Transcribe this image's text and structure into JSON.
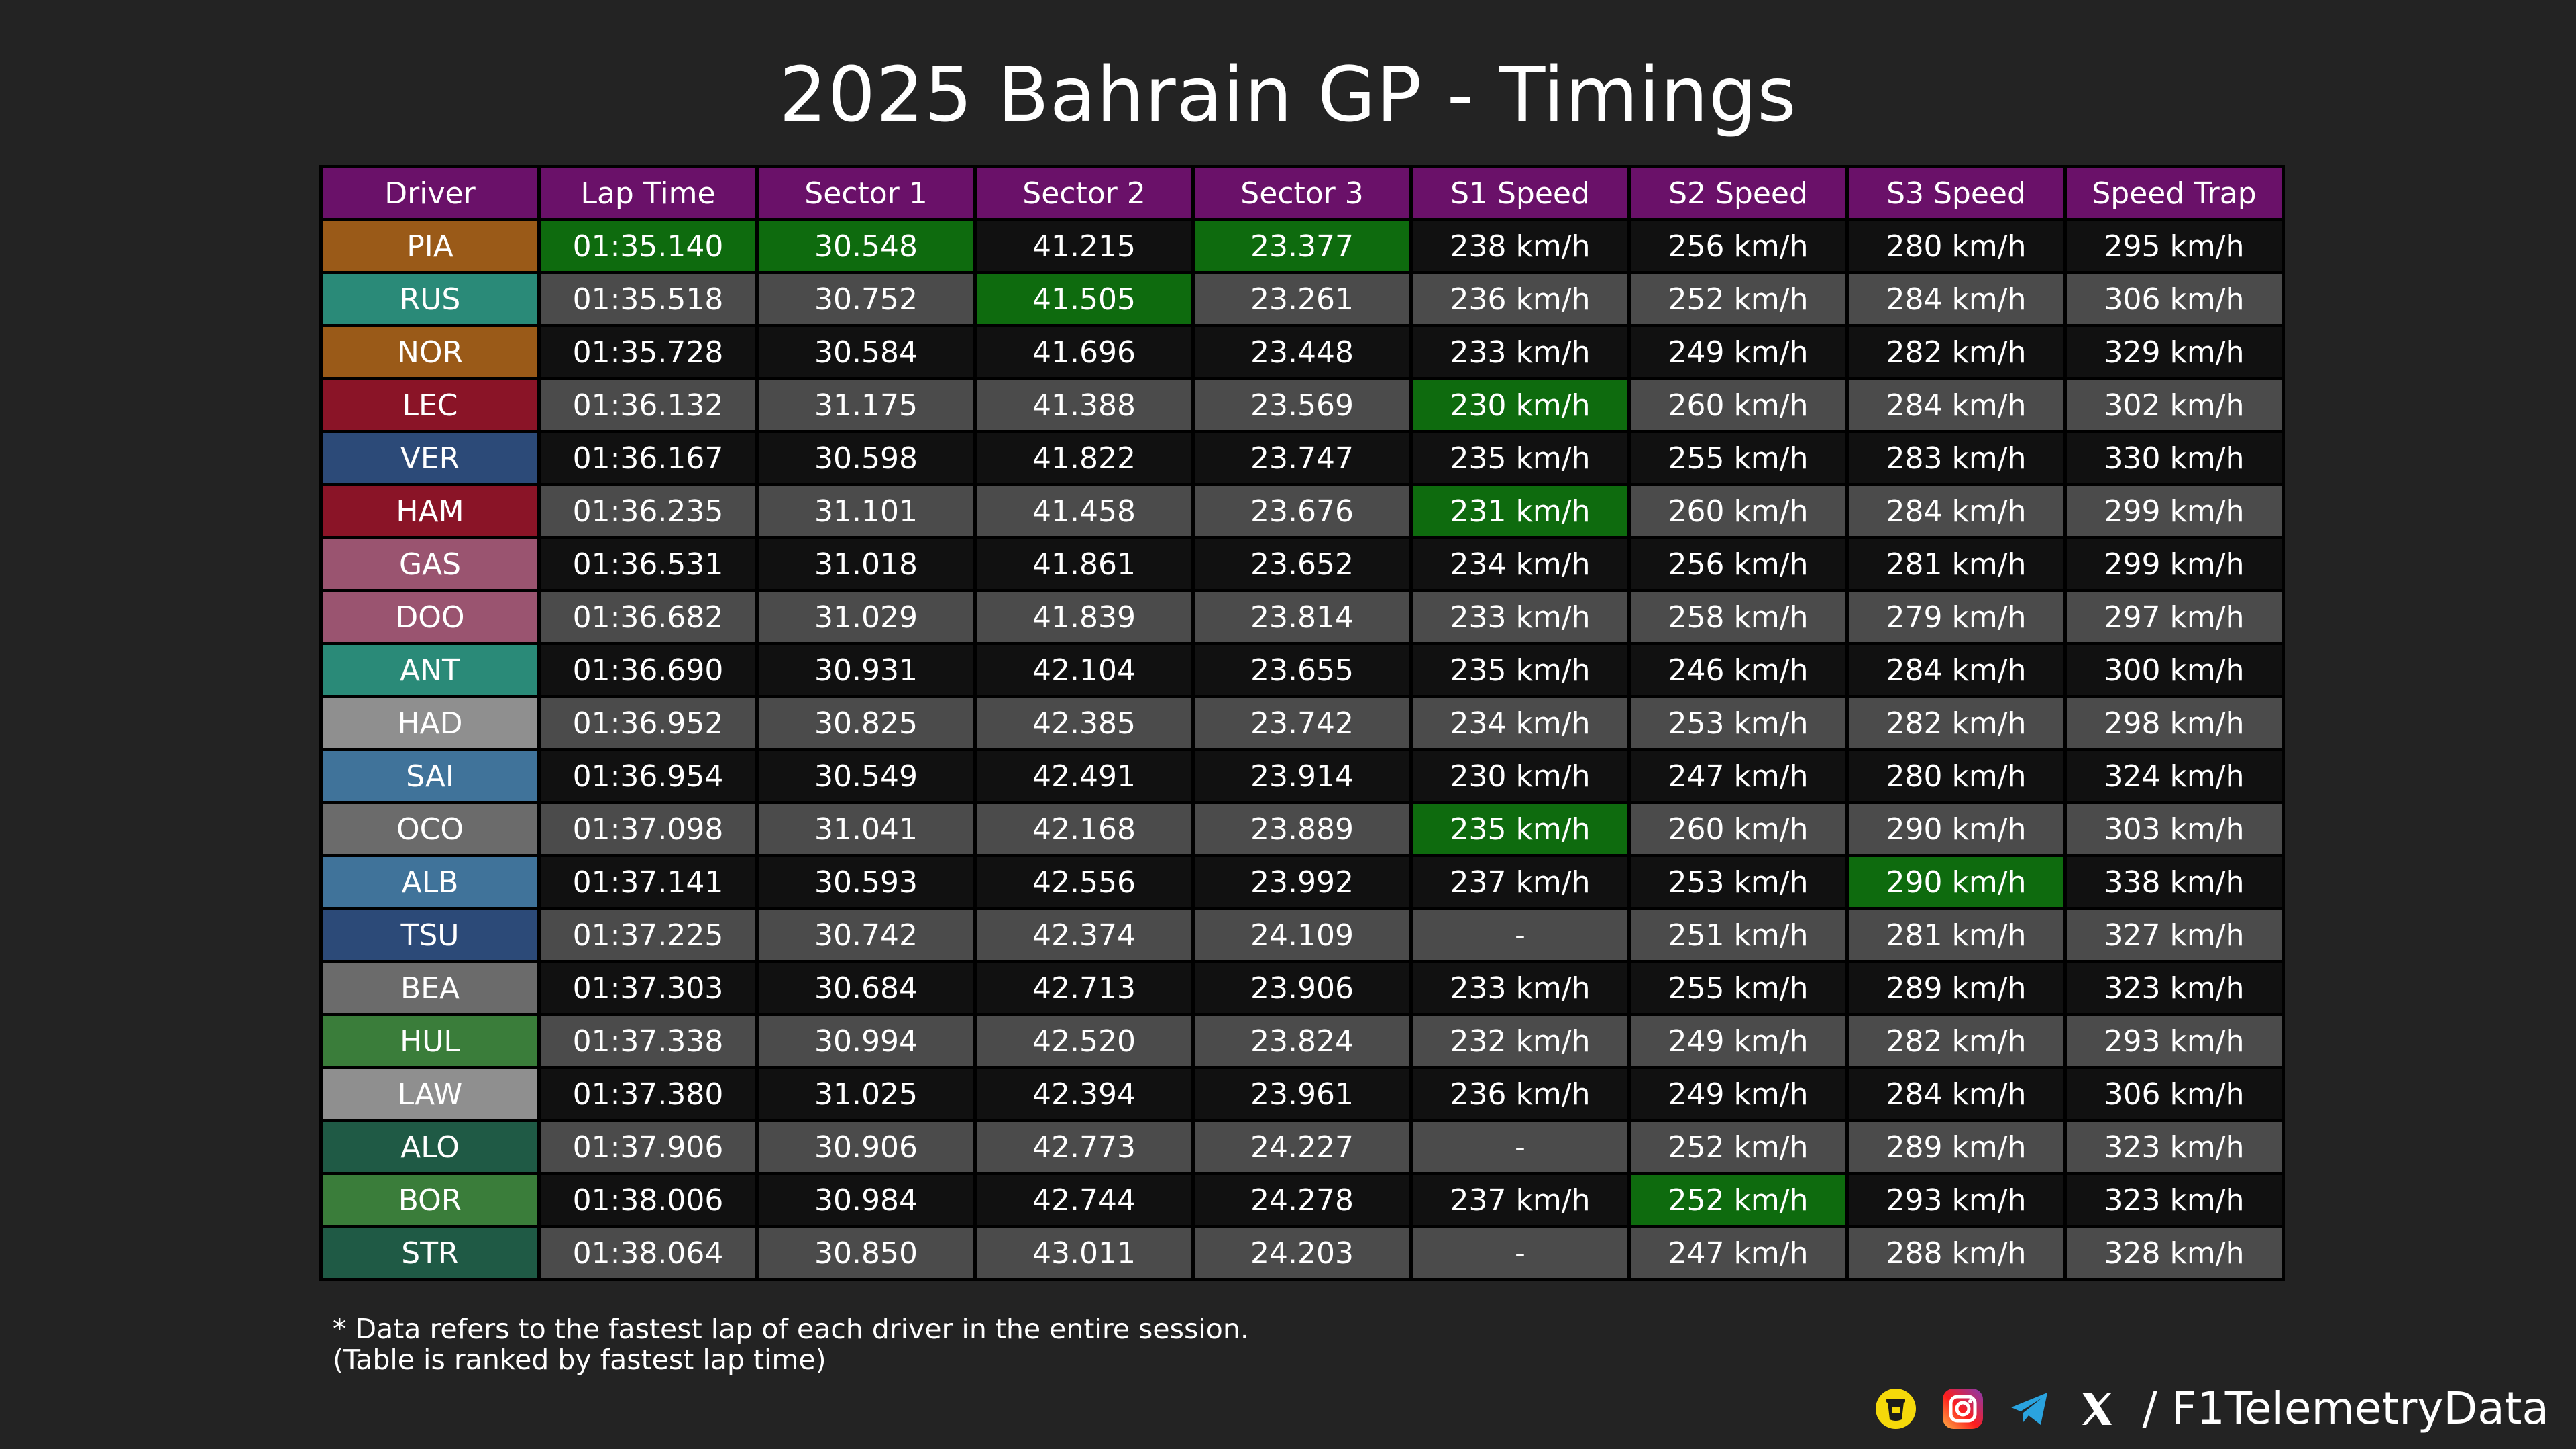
{
  "chart_data": {
    "type": "table",
    "title": "2025 Bahrain GP - Timings",
    "columns": [
      "Driver",
      "Lap Time",
      "Sector 1",
      "Sector 2",
      "Sector 3",
      "S1 Speed",
      "S2 Speed",
      "S3 Speed",
      "Speed Trap"
    ],
    "rows": [
      {
        "driver": "PIA",
        "color": "#9a5a18",
        "cells": [
          "01:35.140",
          "30.548",
          "41.215",
          "23.377",
          "238 km/h",
          "256 km/h",
          "280 km/h",
          "295 km/h"
        ],
        "best": [
          1,
          2,
          4
        ]
      },
      {
        "driver": "RUS",
        "color": "#2a8a78",
        "cells": [
          "01:35.518",
          "30.752",
          "41.505",
          "23.261",
          "236 km/h",
          "252 km/h",
          "284 km/h",
          "306 km/h"
        ],
        "best": [
          3
        ]
      },
      {
        "driver": "NOR",
        "color": "#9a5a18",
        "cells": [
          "01:35.728",
          "30.584",
          "41.696",
          "23.448",
          "233 km/h",
          "249 km/h",
          "282 km/h",
          "329 km/h"
        ],
        "best": []
      },
      {
        "driver": "LEC",
        "color": "#8a1427",
        "cells": [
          "01:36.132",
          "31.175",
          "41.388",
          "23.569",
          "230 km/h",
          "260 km/h",
          "284 km/h",
          "302 km/h"
        ],
        "best": [
          5
        ]
      },
      {
        "driver": "VER",
        "color": "#2c4a78",
        "cells": [
          "01:36.167",
          "30.598",
          "41.822",
          "23.747",
          "235 km/h",
          "255 km/h",
          "283 km/h",
          "330 km/h"
        ],
        "best": []
      },
      {
        "driver": "HAM",
        "color": "#8a1427",
        "cells": [
          "01:36.235",
          "31.101",
          "41.458",
          "23.676",
          "231 km/h",
          "260 km/h",
          "284 km/h",
          "299 km/h"
        ],
        "best": [
          5
        ]
      },
      {
        "driver": "GAS",
        "color": "#9a5470",
        "cells": [
          "01:36.531",
          "31.018",
          "41.861",
          "23.652",
          "234 km/h",
          "256 km/h",
          "281 km/h",
          "299 km/h"
        ],
        "best": []
      },
      {
        "driver": "DOO",
        "color": "#9a5470",
        "cells": [
          "01:36.682",
          "31.029",
          "41.839",
          "23.814",
          "233 km/h",
          "258 km/h",
          "279 km/h",
          "297 km/h"
        ],
        "best": []
      },
      {
        "driver": "ANT",
        "color": "#2a8a78",
        "cells": [
          "01:36.690",
          "30.931",
          "42.104",
          "23.655",
          "235 km/h",
          "246 km/h",
          "284 km/h",
          "300 km/h"
        ],
        "best": []
      },
      {
        "driver": "HAD",
        "color": "#8f8f8f",
        "cells": [
          "01:36.952",
          "30.825",
          "42.385",
          "23.742",
          "234 km/h",
          "253 km/h",
          "282 km/h",
          "298 km/h"
        ],
        "best": []
      },
      {
        "driver": "SAI",
        "color": "#40739a",
        "cells": [
          "01:36.954",
          "30.549",
          "42.491",
          "23.914",
          "230 km/h",
          "247 km/h",
          "280 km/h",
          "324 km/h"
        ],
        "best": []
      },
      {
        "driver": "OCO",
        "color": "#6b6b6b",
        "cells": [
          "01:37.098",
          "31.041",
          "42.168",
          "23.889",
          "235 km/h",
          "260 km/h",
          "290 km/h",
          "303 km/h"
        ],
        "best": [
          5
        ]
      },
      {
        "driver": "ALB",
        "color": "#40739a",
        "cells": [
          "01:37.141",
          "30.593",
          "42.556",
          "23.992",
          "237 km/h",
          "253 km/h",
          "290 km/h",
          "338 km/h"
        ],
        "best": [
          7
        ]
      },
      {
        "driver": "TSU",
        "color": "#2c4a78",
        "cells": [
          "01:37.225",
          "30.742",
          "42.374",
          "24.109",
          "-",
          "251 km/h",
          "281 km/h",
          "327 km/h"
        ],
        "best": []
      },
      {
        "driver": "BEA",
        "color": "#6b6b6b",
        "cells": [
          "01:37.303",
          "30.684",
          "42.713",
          "23.906",
          "233 km/h",
          "255 km/h",
          "289 km/h",
          "323 km/h"
        ],
        "best": []
      },
      {
        "driver": "HUL",
        "color": "#3a7d3a",
        "cells": [
          "01:37.338",
          "30.994",
          "42.520",
          "23.824",
          "232 km/h",
          "249 km/h",
          "282 km/h",
          "293 km/h"
        ],
        "best": []
      },
      {
        "driver": "LAW",
        "color": "#8f8f8f",
        "cells": [
          "01:37.380",
          "31.025",
          "42.394",
          "23.961",
          "236 km/h",
          "249 km/h",
          "284 km/h",
          "306 km/h"
        ],
        "best": []
      },
      {
        "driver": "ALO",
        "color": "#1f5a45",
        "cells": [
          "01:37.906",
          "30.906",
          "42.773",
          "24.227",
          "-",
          "252 km/h",
          "289 km/h",
          "323 km/h"
        ],
        "best": []
      },
      {
        "driver": "BOR",
        "color": "#3a7d3a",
        "cells": [
          "01:38.006",
          "30.984",
          "42.744",
          "24.278",
          "237 km/h",
          "252 km/h",
          "293 km/h",
          "323 km/h"
        ],
        "best": [
          6
        ]
      },
      {
        "driver": "STR",
        "color": "#1f5a45",
        "cells": [
          "01:38.064",
          "30.850",
          "43.011",
          "24.203",
          "-",
          "247 km/h",
          "288 km/h",
          "328 km/h"
        ],
        "best": []
      }
    ],
    "best_color": "#0e6b0e",
    "header_color": "#6a1169",
    "row_colors": [
      "#111111",
      "#4b4b4b"
    ]
  },
  "footnote": {
    "line1": "* Data refers to the fastest lap of each driver in the entire session.",
    "line2": "(Table is ranked by fastest lap time)"
  },
  "brand": {
    "icons": [
      "tip-jar-icon",
      "instagram-icon",
      "telegram-icon",
      "x-icon"
    ],
    "handle": "/ F1TelemetryData"
  },
  "watermark": "@F1TelemetryData"
}
